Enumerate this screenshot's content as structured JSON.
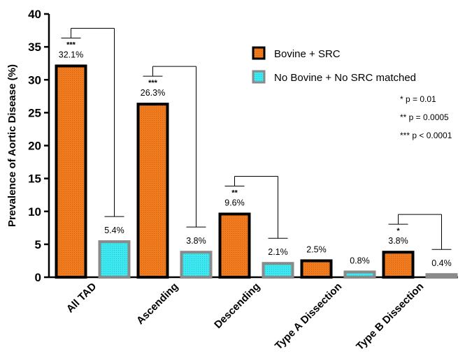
{
  "chart_data": {
    "type": "bar",
    "title": "",
    "ylabel": "Prevalence of Aortic Disease (%)",
    "xlabel": "",
    "ylim": [
      0,
      40
    ],
    "yticks": [
      0,
      5,
      10,
      15,
      20,
      25,
      30,
      35,
      40
    ],
    "categories": [
      "All TAD",
      "Ascending",
      "Descending",
      "Type A Dissection",
      "Type B Dissection"
    ],
    "series": [
      {
        "name": "Bovine + SRC",
        "values": [
          32.1,
          26.3,
          9.6,
          2.5,
          3.8
        ],
        "labels": [
          "32.1%",
          "26.3%",
          "9.6%",
          "2.5%",
          "3.8%"
        ],
        "fill": "#f07a1e",
        "stroke": "#000000"
      },
      {
        "name": "No Bovine + No SRC matched",
        "values": [
          5.4,
          3.8,
          2.1,
          0.8,
          0.4
        ],
        "labels": [
          "5.4%",
          "3.8%",
          "2.1%",
          "0.8%",
          "0.4%"
        ],
        "fill": "#3de8f0",
        "stroke": "#8a8a8a"
      }
    ],
    "significance": [
      "***",
      "***",
      "**",
      "",
      "*"
    ],
    "legend_position": "top-right",
    "notes": [
      "* p = 0.01",
      "** p = 0.0005",
      "*** p < 0.0001"
    ]
  }
}
